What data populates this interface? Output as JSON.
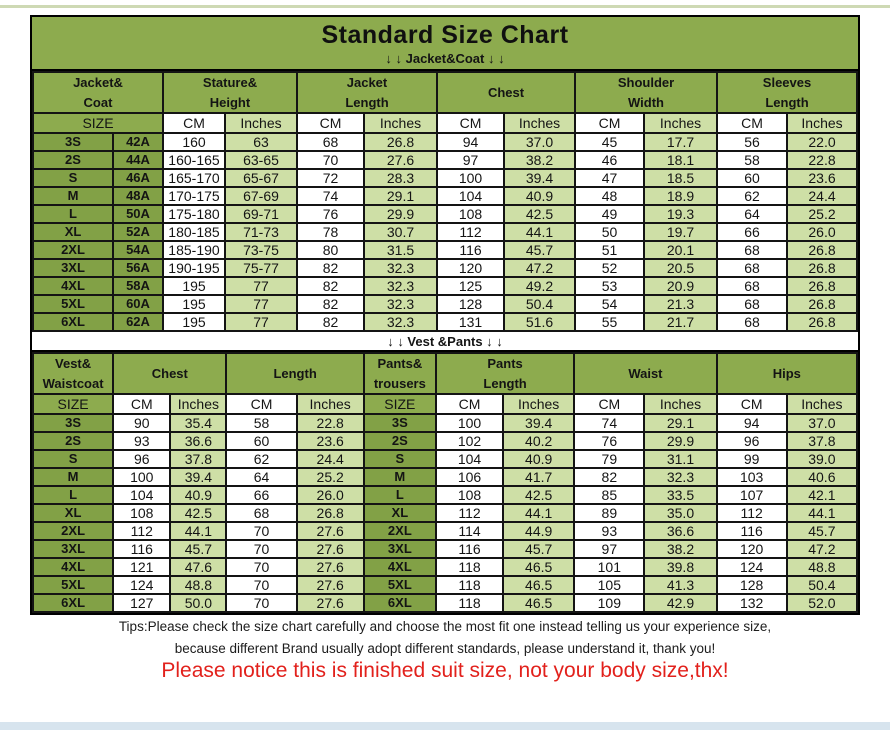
{
  "colors": {
    "header_green": "#8dab4e",
    "size_green": "#82a146",
    "pale_green": "#cedfa6",
    "notice_red": "#e2211c",
    "border_dark": "#141414",
    "top_strip": "#b4c48c",
    "bottom_strip": "#d7e4ee"
  },
  "header": {
    "title": "Standard Size Chart",
    "jacket_section_label": "↓ ↓  Jacket&Coat ↓ ↓"
  },
  "vest_section_label": "↓ ↓  Vest &Pants ↓ ↓",
  "jacket_table": {
    "groups": [
      {
        "label": "Jacket&\nCoat",
        "span": 2
      },
      {
        "label": "Stature&\nHeight",
        "span": 2
      },
      {
        "label": "Jacket\nLength",
        "span": 2
      },
      {
        "label": "Chest",
        "span": 2
      },
      {
        "label": "Shoulder\nWidth",
        "span": 2
      },
      {
        "label": "Sleeves\nLength",
        "span": 2
      }
    ],
    "units": [
      {
        "label": "SIZE",
        "span": 2,
        "style": "g"
      },
      {
        "label": "CM",
        "style": "w"
      },
      {
        "label": "Inches",
        "style": "p"
      },
      {
        "label": "CM",
        "style": "w"
      },
      {
        "label": "Inches",
        "style": "p"
      },
      {
        "label": "CM",
        "style": "w"
      },
      {
        "label": "Inches",
        "style": "p"
      },
      {
        "label": "CM",
        "style": "w"
      },
      {
        "label": "Inches",
        "style": "p"
      },
      {
        "label": "CM",
        "style": "w"
      },
      {
        "label": "Inches",
        "style": "p"
      }
    ],
    "rows": [
      {
        "size": [
          "3S",
          "42A"
        ],
        "values": [
          "160",
          "63",
          "68",
          "26.8",
          "94",
          "37.0",
          "45",
          "17.7",
          "56",
          "22.0"
        ]
      },
      {
        "size": [
          "2S",
          "44A"
        ],
        "values": [
          "160-165",
          "63-65",
          "70",
          "27.6",
          "97",
          "38.2",
          "46",
          "18.1",
          "58",
          "22.8"
        ]
      },
      {
        "size": [
          "S",
          "46A"
        ],
        "values": [
          "165-170",
          "65-67",
          "72",
          "28.3",
          "100",
          "39.4",
          "47",
          "18.5",
          "60",
          "23.6"
        ]
      },
      {
        "size": [
          "M",
          "48A"
        ],
        "values": [
          "170-175",
          "67-69",
          "74",
          "29.1",
          "104",
          "40.9",
          "48",
          "18.9",
          "62",
          "24.4"
        ]
      },
      {
        "size": [
          "L",
          "50A"
        ],
        "values": [
          "175-180",
          "69-71",
          "76",
          "29.9",
          "108",
          "42.5",
          "49",
          "19.3",
          "64",
          "25.2"
        ]
      },
      {
        "size": [
          "XL",
          "52A"
        ],
        "values": [
          "180-185",
          "71-73",
          "78",
          "30.7",
          "112",
          "44.1",
          "50",
          "19.7",
          "66",
          "26.0"
        ]
      },
      {
        "size": [
          "2XL",
          "54A"
        ],
        "values": [
          "185-190",
          "73-75",
          "80",
          "31.5",
          "116",
          "45.7",
          "51",
          "20.1",
          "68",
          "26.8"
        ]
      },
      {
        "size": [
          "3XL",
          "56A"
        ],
        "values": [
          "190-195",
          "75-77",
          "82",
          "32.3",
          "120",
          "47.2",
          "52",
          "20.5",
          "68",
          "26.8"
        ]
      },
      {
        "size": [
          "4XL",
          "58A"
        ],
        "values": [
          "195",
          "77",
          "82",
          "32.3",
          "125",
          "49.2",
          "53",
          "20.9",
          "68",
          "26.8"
        ]
      },
      {
        "size": [
          "5XL",
          "60A"
        ],
        "values": [
          "195",
          "77",
          "82",
          "32.3",
          "128",
          "50.4",
          "54",
          "21.3",
          "68",
          "26.8"
        ]
      },
      {
        "size": [
          "6XL",
          "62A"
        ],
        "values": [
          "195",
          "77",
          "82",
          "32.3",
          "131",
          "51.6",
          "55",
          "21.7",
          "68",
          "26.8"
        ]
      }
    ]
  },
  "vest_table": {
    "groups": [
      {
        "label": "Vest&\nWaistcoat",
        "span": 1
      },
      {
        "label": "Chest",
        "span": 2
      },
      {
        "label": "Length",
        "span": 2
      },
      {
        "label": "Pants&\ntrousers",
        "span": 1
      },
      {
        "label": "Pants\nLength",
        "span": 2
      },
      {
        "label": "Waist",
        "span": 2
      },
      {
        "label": "Hips",
        "span": 2
      }
    ],
    "units": [
      {
        "label": "SIZE",
        "style": "g"
      },
      {
        "label": "CM",
        "style": "w"
      },
      {
        "label": "Inches",
        "style": "p"
      },
      {
        "label": "CM",
        "style": "w"
      },
      {
        "label": "Inches",
        "style": "p"
      },
      {
        "label": "SIZE",
        "style": "g"
      },
      {
        "label": "CM",
        "style": "w"
      },
      {
        "label": "Inches",
        "style": "p"
      },
      {
        "label": "CM",
        "style": "w"
      },
      {
        "label": "Inches",
        "style": "p"
      },
      {
        "label": "CM",
        "style": "w"
      },
      {
        "label": "Inches",
        "style": "p"
      }
    ],
    "rows": [
      {
        "size": "3S",
        "values": [
          "90",
          "35.4",
          "58",
          "22.8"
        ],
        "pants_size": "3S",
        "pants_values": [
          "100",
          "39.4",
          "74",
          "29.1",
          "94",
          "37.0"
        ]
      },
      {
        "size": "2S",
        "values": [
          "93",
          "36.6",
          "60",
          "23.6"
        ],
        "pants_size": "2S",
        "pants_values": [
          "102",
          "40.2",
          "76",
          "29.9",
          "96",
          "37.8"
        ]
      },
      {
        "size": "S",
        "values": [
          "96",
          "37.8",
          "62",
          "24.4"
        ],
        "pants_size": "S",
        "pants_values": [
          "104",
          "40.9",
          "79",
          "31.1",
          "99",
          "39.0"
        ]
      },
      {
        "size": "M",
        "values": [
          "100",
          "39.4",
          "64",
          "25.2"
        ],
        "pants_size": "M",
        "pants_values": [
          "106",
          "41.7",
          "82",
          "32.3",
          "103",
          "40.6"
        ]
      },
      {
        "size": "L",
        "values": [
          "104",
          "40.9",
          "66",
          "26.0"
        ],
        "pants_size": "L",
        "pants_values": [
          "108",
          "42.5",
          "85",
          "33.5",
          "107",
          "42.1"
        ]
      },
      {
        "size": "XL",
        "values": [
          "108",
          "42.5",
          "68",
          "26.8"
        ],
        "pants_size": "XL",
        "pants_values": [
          "112",
          "44.1",
          "89",
          "35.0",
          "112",
          "44.1"
        ]
      },
      {
        "size": "2XL",
        "values": [
          "112",
          "44.1",
          "70",
          "27.6"
        ],
        "pants_size": "2XL",
        "pants_values": [
          "114",
          "44.9",
          "93",
          "36.6",
          "116",
          "45.7"
        ]
      },
      {
        "size": "3XL",
        "values": [
          "116",
          "45.7",
          "70",
          "27.6"
        ],
        "pants_size": "3XL",
        "pants_values": [
          "116",
          "45.7",
          "97",
          "38.2",
          "120",
          "47.2"
        ]
      },
      {
        "size": "4XL",
        "values": [
          "121",
          "47.6",
          "70",
          "27.6"
        ],
        "pants_size": "4XL",
        "pants_values": [
          "118",
          "46.5",
          "101",
          "39.8",
          "124",
          "48.8"
        ]
      },
      {
        "size": "5XL",
        "values": [
          "124",
          "48.8",
          "70",
          "27.6"
        ],
        "pants_size": "5XL",
        "pants_values": [
          "118",
          "46.5",
          "105",
          "41.3",
          "128",
          "50.4"
        ]
      },
      {
        "size": "6XL",
        "values": [
          "127",
          "50.0",
          "70",
          "27.6"
        ],
        "pants_size": "6XL",
        "pants_values": [
          "118",
          "46.5",
          "109",
          "42.9",
          "132",
          "52.0"
        ]
      }
    ]
  },
  "footer": {
    "tips_line1": "Tips:Please check the size chart carefully and choose the most fit one instead telling us your experience size,",
    "tips_line2": "because different Brand usually adopt different standards, please understand it, thank you!",
    "notice": "Please notice this is finished suit size, not your body size,thx!"
  }
}
